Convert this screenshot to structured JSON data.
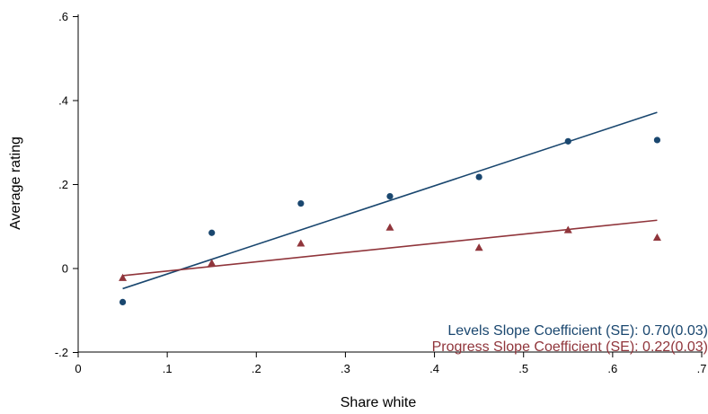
{
  "chart_data": {
    "type": "scatter",
    "title": "",
    "xlabel": "Share white",
    "ylabel": "Average rating",
    "xlim": [
      0,
      0.7
    ],
    "ylim": [
      -0.2,
      0.6
    ],
    "x_ticks": [
      0,
      0.1,
      0.2,
      0.3,
      0.4,
      0.5,
      0.6,
      0.7
    ],
    "x_tick_labels": [
      "0",
      ".1",
      ".2",
      ".3",
      ".4",
      ".5",
      ".6",
      ".7"
    ],
    "y_ticks": [
      -0.2,
      0,
      0.2,
      0.4,
      0.6
    ],
    "y_tick_labels": [
      "-.2",
      "0",
      ".2",
      ".4",
      ".6"
    ],
    "grid": false,
    "series": [
      {
        "marker": "circle",
        "color": "#1a476f",
        "x": [
          0.05,
          0.15,
          0.25,
          0.35,
          0.45,
          0.55,
          0.65
        ],
        "y": [
          -0.08,
          0.085,
          0.155,
          0.172,
          0.218,
          0.303,
          0.306
        ],
        "fit_line": {
          "x": [
            0.05,
            0.65
          ],
          "y": [
            -0.048,
            0.372
          ]
        }
      },
      {
        "marker": "triangle",
        "color": "#90353b",
        "x": [
          0.05,
          0.15,
          0.25,
          0.35,
          0.45,
          0.55,
          0.65
        ],
        "y": [
          -0.022,
          0.013,
          0.06,
          0.098,
          0.05,
          0.092,
          0.074
        ],
        "fit_line": {
          "x": [
            0.05,
            0.65
          ],
          "y": [
            -0.017,
            0.115
          ]
        }
      }
    ],
    "annotations": [
      {
        "text": "Levels Slope Coefficient (SE): 0.70(0.03)",
        "color": "#1a476f",
        "placement": "bottom-right"
      },
      {
        "text": "Progress Slope Coefficient (SE): 0.22(0.03)",
        "color": "#90353b",
        "placement": "bottom-right"
      }
    ]
  }
}
